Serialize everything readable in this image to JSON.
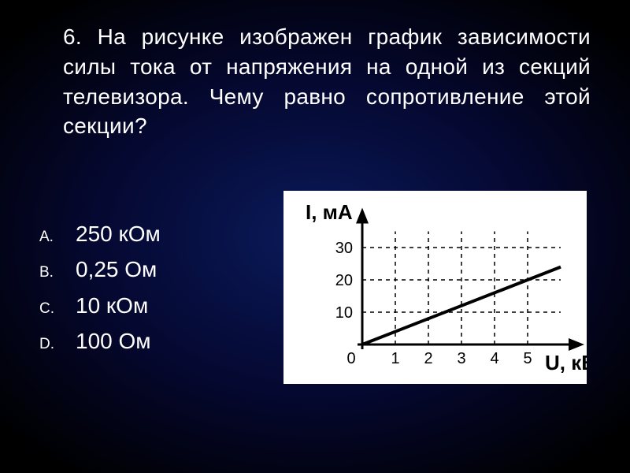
{
  "question_text": "6. На рисунке изображен график зависимости силы тока от напряжения на одной из секций телевизора. Чему равно сопротивление этой секции?",
  "options": [
    {
      "letter": "A.",
      "text": "250 кОм"
    },
    {
      "letter": "B.",
      "text": "0,25 Ом"
    },
    {
      "letter": "C.",
      "text": "10 кОм"
    },
    {
      "letter": "D.",
      "text": "100 Ом"
    }
  ],
  "chart": {
    "type": "line",
    "background_color": "#ffffff",
    "axis_color": "#000000",
    "grid_dash": "5 5",
    "grid_color": "#000000",
    "line_color": "#000000",
    "line_width": 4,
    "axis_width": 3,
    "y_label": "I, мА",
    "y_label_fontsize": 26,
    "y_label_fontweight": "bold",
    "x_label": "U, кВ",
    "x_label_fontsize": 26,
    "x_label_fontweight": "bold",
    "tick_fontsize": 20,
    "x_ticks": [
      1,
      2,
      3,
      4,
      5
    ],
    "y_ticks": [
      10,
      20,
      30
    ],
    "xlim": [
      0,
      6
    ],
    "ylim": [
      0,
      35
    ],
    "data_points": [
      [
        0,
        0
      ],
      [
        6,
        24
      ]
    ],
    "origin_label": "0"
  }
}
